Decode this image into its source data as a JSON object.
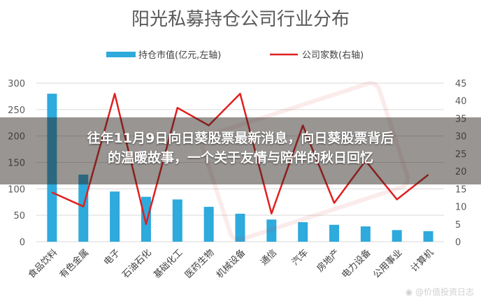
{
  "chart_data": {
    "type": "bar",
    "title": "阳光私募持仓公司行业分布",
    "categories": [
      "食品饮料",
      "有色金属",
      "电子",
      "石油石化",
      "基础化工",
      "医药生物",
      "机械设备",
      "通信",
      "汽车",
      "房地产",
      "电力设备",
      "公用事业",
      "计算机"
    ],
    "series": [
      {
        "name": "持仓市值(亿元,左轴)",
        "type": "bar",
        "axis": "left",
        "color": "#2eaadc",
        "values": [
          280,
          127,
          95,
          85,
          80,
          66,
          53,
          42,
          37,
          32,
          29,
          22,
          20
        ]
      },
      {
        "name": "公司家数(右轴)",
        "type": "line",
        "axis": "right",
        "color": "#e02020",
        "values": [
          14,
          10,
          42,
          5,
          38,
          33,
          42,
          8,
          33,
          11,
          23,
          12,
          19
        ]
      }
    ],
    "ylim_left": [
      0,
      300
    ],
    "yticks_left": [
      0,
      50,
      100,
      150,
      200,
      250,
      300
    ],
    "ylim_right": [
      0,
      45
    ],
    "yticks_right": [
      0,
      5,
      10,
      15,
      20,
      25,
      30,
      35,
      40,
      45
    ],
    "grid": true,
    "legend": "top-center"
  },
  "overlay": {
    "headline_line1": "往年11月9日向日葵股票最新消息，向日葵股票背后",
    "headline_line2": "的温暖故事，一个关于友情与陪伴的秋日回忆"
  },
  "watermark": {
    "text": "@价值投资日志",
    "icon": "weibo-icon"
  }
}
